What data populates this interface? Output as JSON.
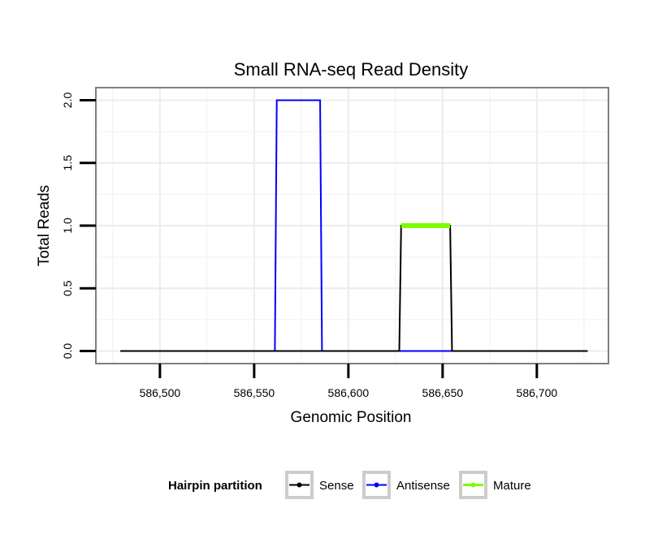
{
  "chart_data": {
    "type": "line",
    "title": "Small RNA-seq Read Density",
    "xlabel": "Genomic Position",
    "ylabel": "Total Reads",
    "xlim": [
      586466,
      586738
    ],
    "ylim": [
      -0.1,
      2.1
    ],
    "x_ticks": [
      586500,
      586550,
      586600,
      586650,
      586700
    ],
    "x_tick_labels": [
      "586,500",
      "586,550",
      "586,600",
      "586,650",
      "586,700"
    ],
    "y_ticks": [
      0.0,
      0.5,
      1.0,
      1.5,
      2.0
    ],
    "y_tick_labels": [
      "0.0",
      "0.5",
      "1.0",
      "1.5",
      "2.0"
    ],
    "grid": true,
    "legend": {
      "title": "Hairpin partition",
      "placement": "bottom",
      "entries": [
        "Sense",
        "Antisense",
        "Mature"
      ]
    },
    "series": [
      {
        "name": "Antisense",
        "color": "#0000ff",
        "x": [
          586479,
          586561,
          586562,
          586585,
          586586,
          586655
        ],
        "y": [
          0,
          0,
          2,
          2,
          0,
          0
        ]
      },
      {
        "name": "Sense",
        "color": "#000000",
        "x": [
          586479,
          586627,
          586628,
          586654,
          586655,
          586727
        ],
        "y": [
          0,
          0,
          1,
          1,
          0,
          0
        ]
      },
      {
        "name": "Mature",
        "color": "#7cfc00",
        "x": [
          586628,
          586654
        ],
        "y": [
          1,
          1
        ]
      }
    ]
  }
}
